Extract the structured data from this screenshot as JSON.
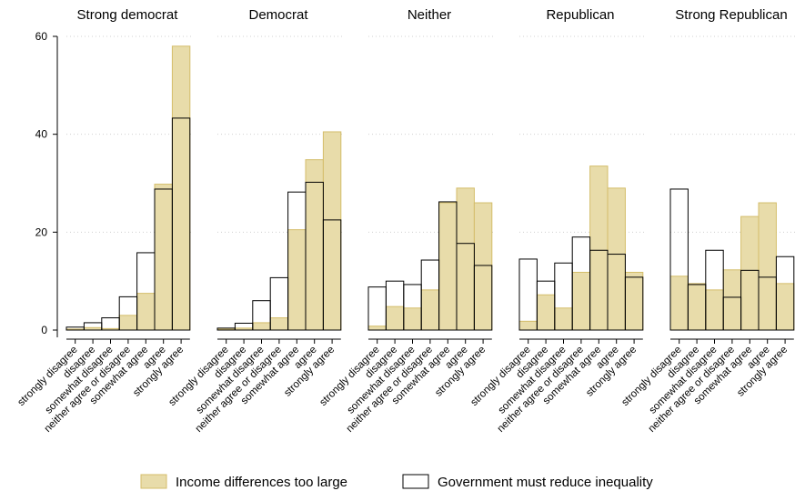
{
  "chart_data": {
    "type": "bar",
    "panels": [
      "Strong democrat",
      "Democrat",
      "Neither",
      "Republican",
      "Strong Republican"
    ],
    "categories": [
      "strongly disagree",
      "disagree",
      "somewhat disagree",
      "neither agree or disagree",
      "somewhat agree",
      "agree",
      "strongly agree"
    ],
    "ylim": [
      0,
      60
    ],
    "yticks": [
      0,
      20,
      40,
      60
    ],
    "grid": true,
    "legend_position": "bottom",
    "series": [
      {
        "name": "Income differences too large",
        "style": "filled",
        "color": "#e8dcaa",
        "edge_color": "#d4bd6a",
        "values": [
          [
            0.2,
            0.5,
            0.3,
            3.0,
            7.5,
            29.8,
            58.0
          ],
          [
            0.2,
            0.4,
            1.5,
            2.5,
            20.5,
            34.8,
            40.5
          ],
          [
            0.8,
            4.8,
            4.5,
            8.2,
            26.0,
            29.0,
            26.0
          ],
          [
            1.8,
            7.2,
            4.5,
            11.8,
            33.5,
            29.0,
            11.8
          ],
          [
            11.0,
            9.5,
            8.2,
            12.3,
            23.2,
            26.0,
            9.5
          ]
        ]
      },
      {
        "name": "Government must reduce inequality",
        "style": "outline",
        "color": "#000000",
        "values": [
          [
            0.6,
            1.5,
            2.5,
            6.8,
            15.8,
            28.8,
            43.3
          ],
          [
            0.4,
            1.4,
            6.0,
            10.7,
            28.2,
            30.2,
            22.5
          ],
          [
            8.8,
            10.0,
            9.3,
            14.3,
            26.2,
            17.7,
            13.2
          ],
          [
            14.5,
            10.0,
            13.7,
            19.0,
            16.3,
            15.5,
            10.8
          ],
          [
            28.8,
            9.3,
            16.3,
            6.7,
            12.2,
            10.8,
            15.0
          ]
        ]
      }
    ]
  }
}
